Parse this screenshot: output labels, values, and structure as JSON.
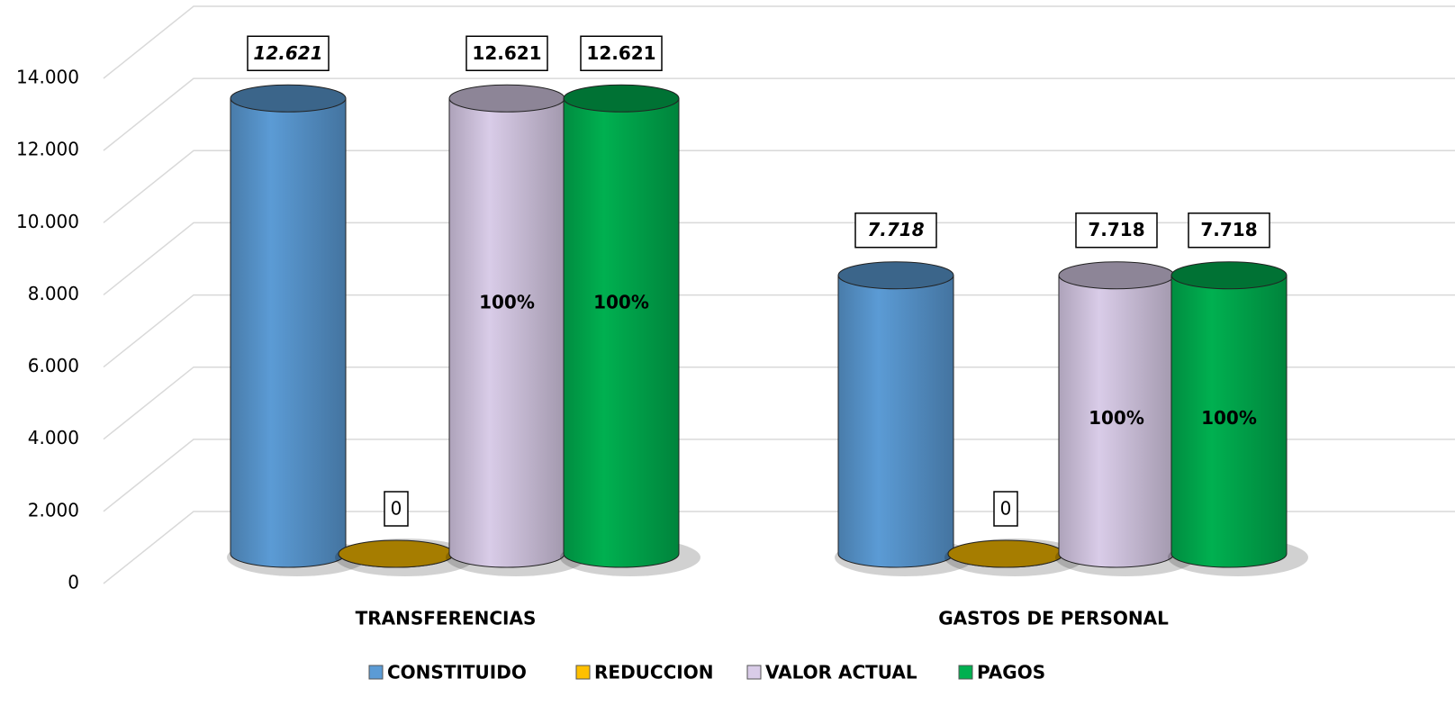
{
  "chart_data": {
    "type": "cylinder",
    "categories": [
      "TRANSFERENCIAS",
      "GASTOS DE PERSONAL"
    ],
    "series": [
      {
        "name": "CONSTITUIDO",
        "color": "#5b9bd5",
        "values": [
          12621,
          7718
        ],
        "value_labels": [
          "12.621",
          "7.718"
        ]
      },
      {
        "name": "REDUCCION",
        "color": "#ffc000",
        "values": [
          0,
          0
        ],
        "value_labels": [
          "0",
          "0"
        ]
      },
      {
        "name": "VALOR ACTUAL",
        "color": "#d9cce8",
        "values": [
          12621,
          7718
        ],
        "value_labels": [
          "12.621",
          "7.718"
        ],
        "percent_labels": [
          "100%",
          "100%"
        ]
      },
      {
        "name": "PAGOS",
        "color": "#00b050",
        "values": [
          12621,
          7718
        ],
        "value_labels": [
          "12.621",
          "7.718"
        ],
        "percent_labels": [
          "100%",
          "100%"
        ]
      }
    ],
    "ylim": [
      0,
      14000
    ],
    "yticks": [
      0,
      {
        "value": 2000,
        "label": "2.000"
      },
      {
        "value": 4000,
        "label": "4.000"
      },
      {
        "value": 6000,
        "label": "6.000"
      },
      {
        "value": 8000,
        "label": "8.000"
      },
      {
        "value": 10000,
        "label": "10.000"
      },
      {
        "value": 12000,
        "label": "12.000"
      },
      {
        "value": 14000,
        "label": "14.000"
      }
    ],
    "grid": true,
    "legend": "bottom"
  }
}
